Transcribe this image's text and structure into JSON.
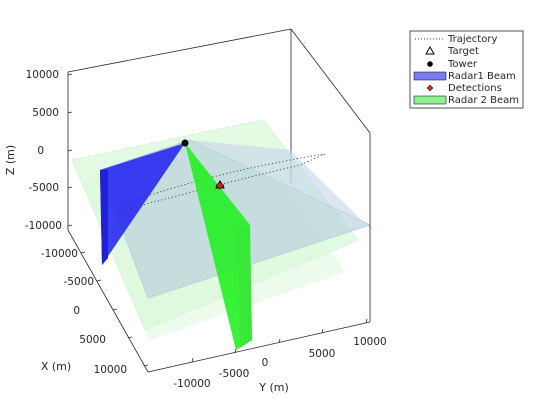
{
  "chart_data": {
    "type": "3d-surface-scene",
    "xlabel": "X (m)",
    "ylabel": "Y (m)",
    "zlabel": "Z (m)",
    "xlim": [
      -12000,
      12000
    ],
    "ylim": [
      -12000,
      12000
    ],
    "zlim": [
      -10000,
      10000
    ],
    "x_ticks": [
      "-10000",
      "-5000",
      "0",
      "5000",
      "10000"
    ],
    "y_ticks": [
      "-10000",
      "-5000",
      "0",
      "5000",
      "10000"
    ],
    "z_ticks": [
      "10000",
      "5000",
      "0",
      "-5000",
      "-10000"
    ],
    "legend": {
      "position": "top-right",
      "entries": [
        {
          "label": "Trajectory",
          "style": "dotted-line",
          "color": "#000000"
        },
        {
          "label": "Target",
          "style": "triangle-marker",
          "color": "#000000"
        },
        {
          "label": "Tower",
          "style": "circle-marker",
          "color": "#000000"
        },
        {
          "label": "Radar1 Beam",
          "style": "patch",
          "color": "#7a7aef"
        },
        {
          "label": "Detections",
          "style": "diamond-marker",
          "color": "#e41a1c"
        },
        {
          "label": "Radar 2 Beam",
          "style": "patch",
          "color": "#8ef08e"
        }
      ]
    },
    "series": [
      {
        "name": "Tower",
        "x": 0,
        "y": 0,
        "z": 0
      },
      {
        "name": "Target",
        "x": 2800,
        "y": 1900,
        "z": -1000
      },
      {
        "name": "Detections",
        "x": 2800,
        "y": 1900,
        "z": -1000
      }
    ],
    "colors": {
      "radar1_beam": "#1f1ff2",
      "radar2_beam": "#19f019",
      "radar1_coverage": "#b4ccdc",
      "radar2_coverage": "#ccf5cc",
      "detection": "#e41a1c"
    }
  }
}
